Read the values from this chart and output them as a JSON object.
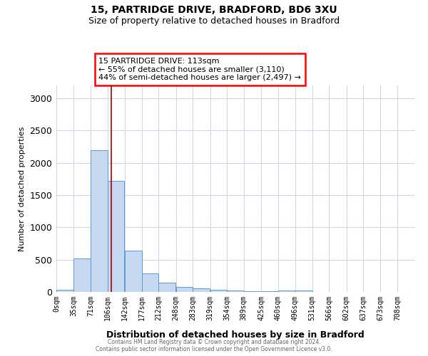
{
  "title1": "15, PARTRIDGE DRIVE, BRADFORD, BD6 3XU",
  "title2": "Size of property relative to detached houses in Bradford",
  "xlabel": "Distribution of detached houses by size in Bradford",
  "ylabel": "Number of detached properties",
  "footer1": "Contains HM Land Registry data © Crown copyright and database right 2024.",
  "footer2": "Contains public sector information licensed under the Open Government Licence v3.0.",
  "annotation_line1": "15 PARTRIDGE DRIVE: 113sqm",
  "annotation_line2": "← 55% of detached houses are smaller (3,110)",
  "annotation_line3": "44% of semi-detached houses are larger (2,497) →",
  "bar_color": "#c5d8f0",
  "bar_edge_color": "#5b9bd5",
  "red_line_x": 113,
  "red_line_color": "#aa0000",
  "categories": [
    "0sqm",
    "35sqm",
    "71sqm",
    "106sqm",
    "142sqm",
    "177sqm",
    "212sqm",
    "248sqm",
    "283sqm",
    "319sqm",
    "354sqm",
    "389sqm",
    "425sqm",
    "460sqm",
    "496sqm",
    "531sqm",
    "566sqm",
    "602sqm",
    "637sqm",
    "673sqm",
    "708sqm"
  ],
  "bin_edges": [
    0,
    35,
    71,
    106,
    142,
    177,
    212,
    248,
    283,
    319,
    354,
    389,
    425,
    460,
    496,
    531,
    566,
    602,
    637,
    673,
    708
  ],
  "bin_width": 35,
  "values": [
    30,
    520,
    2200,
    1720,
    640,
    290,
    145,
    80,
    50,
    30,
    20,
    15,
    10,
    20,
    25,
    5,
    3,
    2,
    2,
    1,
    0
  ],
  "ylim": [
    0,
    3200
  ],
  "yticks": [
    0,
    500,
    1000,
    1500,
    2000,
    2500,
    3000
  ],
  "background_color": "#ffffff",
  "grid_color": "#d0d8e8"
}
